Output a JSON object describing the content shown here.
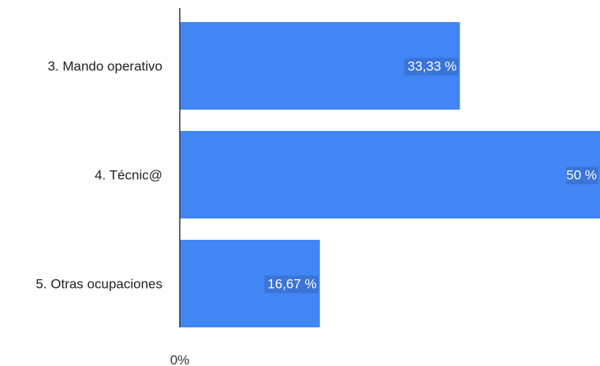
{
  "chart_data": {
    "type": "bar",
    "orientation": "horizontal",
    "title": "",
    "xlabel": "",
    "ylabel": "",
    "categories": [
      "3. Mando operativo",
      "4. Técnic@",
      "5. Otras ocupaciones"
    ],
    "values": [
      33.33,
      50,
      16.67
    ],
    "data_labels": [
      "33,33 %",
      "50 %",
      "16,67 %"
    ],
    "xlim": [
      0,
      50
    ],
    "x_tick_labels": [
      {
        "value": 0,
        "label": "0%"
      }
    ],
    "bar_color": "#4285f4",
    "label_color": "#ffffff",
    "axis_color": "#333333",
    "grid": false,
    "legend": "none"
  }
}
